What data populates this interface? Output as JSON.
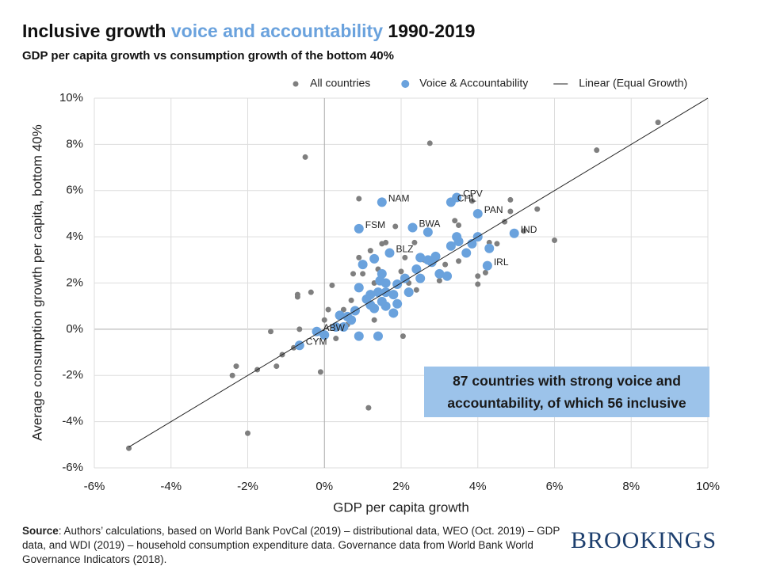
{
  "chart_data": {
    "type": "scatter",
    "title": [
      "Inclusive growth",
      "voice and accountability",
      "1990-2019"
    ],
    "subtitle": "GDP per capita growth vs consumption growth of the bottom 40%",
    "x_label": "GDP per capita growth",
    "y_label": "Average consumption growth per capita, bottom 40%",
    "xlim": [
      -6,
      10
    ],
    "ylim": [
      -6,
      10
    ],
    "xticks": [
      {
        "value": -6,
        "label": "-6%"
      },
      {
        "value": -4,
        "label": "-4%"
      },
      {
        "value": -2,
        "label": "-2%"
      },
      {
        "value": 0,
        "label": "0%"
      },
      {
        "value": 2,
        "label": "2%"
      },
      {
        "value": 4,
        "label": "4%"
      },
      {
        "value": 6,
        "label": "6%"
      },
      {
        "value": 8,
        "label": "8%"
      },
      {
        "value": 10,
        "label": "10%"
      }
    ],
    "yticks": [
      {
        "value": -6,
        "label": "-6%"
      },
      {
        "value": -4,
        "label": "-4%"
      },
      {
        "value": -2,
        "label": "-2%"
      },
      {
        "value": 0,
        "label": "0%"
      },
      {
        "value": 2,
        "label": "2%"
      },
      {
        "value": 4,
        "label": "4%"
      },
      {
        "value": 6,
        "label": "6%"
      },
      {
        "value": 8,
        "label": "8%"
      },
      {
        "value": 10,
        "label": "10%"
      }
    ],
    "grid": true,
    "series": [
      {
        "name": "All countries",
        "color": "#7f7f7f",
        "kind": "scatter",
        "x": [
          -5.1,
          -2.4,
          -2.3,
          -2.0,
          -1.75,
          -1.4,
          -1.25,
          -1.1,
          -0.8,
          -0.7,
          -0.7,
          -0.65,
          -0.5,
          -0.35,
          -0.1,
          0.0,
          0.1,
          0.2,
          0.3,
          0.5,
          0.7,
          0.75,
          0.9,
          0.9,
          1.0,
          1.15,
          1.2,
          1.3,
          1.3,
          1.5,
          1.6,
          1.85,
          2.0,
          2.05,
          2.1,
          2.2,
          2.35,
          2.75,
          2.9,
          3.0,
          3.15,
          3.4,
          3.5,
          3.5,
          3.85,
          4.0,
          4.0,
          4.2,
          4.3,
          4.5,
          4.7,
          4.85,
          4.85,
          5.2,
          5.55,
          6.0,
          7.1,
          8.7,
          1.4,
          0.6,
          2.4,
          2.6
        ],
        "values": [
          -5.15,
          -2.0,
          -1.6,
          -4.5,
          -1.75,
          -0.1,
          -1.6,
          -1.1,
          -0.8,
          1.4,
          1.5,
          0.0,
          7.45,
          1.6,
          -1.85,
          0.4,
          0.85,
          1.9,
          -0.4,
          0.85,
          1.25,
          2.4,
          5.65,
          3.1,
          2.4,
          -3.4,
          3.4,
          2.0,
          0.4,
          3.7,
          3.75,
          4.45,
          2.5,
          -0.3,
          3.1,
          2.0,
          3.75,
          8.05,
          3.0,
          2.1,
          2.8,
          4.7,
          4.5,
          2.95,
          5.55,
          2.3,
          1.95,
          2.45,
          3.75,
          3.7,
          4.65,
          5.1,
          5.6,
          4.25,
          5.2,
          3.85,
          7.75,
          8.95,
          2.6,
          0.2,
          1.7,
          3.0
        ]
      },
      {
        "name": "Voice & Accountability",
        "color": "#6aa2dd",
        "kind": "scatter",
        "x": [
          -0.65,
          -0.2,
          0.0,
          0.3,
          0.4,
          0.5,
          0.6,
          0.8,
          0.9,
          0.9,
          0.9,
          1.0,
          1.1,
          1.2,
          1.3,
          1.4,
          1.4,
          1.5,
          1.5,
          1.6,
          1.6,
          1.7,
          1.8,
          1.8,
          1.9,
          1.9,
          2.1,
          2.2,
          2.3,
          2.4,
          2.5,
          2.5,
          2.7,
          2.7,
          2.9,
          3.0,
          3.2,
          3.3,
          3.3,
          3.45,
          3.45,
          3.5,
          3.7,
          3.85,
          4.0,
          4.0,
          4.3,
          4.25,
          4.95,
          1.2,
          1.3,
          1.5,
          2.8,
          0.7,
          1.6,
          1.45
        ],
        "values": [
          -0.7,
          -0.1,
          -0.25,
          0.1,
          0.6,
          0.1,
          0.55,
          0.8,
          -0.3,
          1.8,
          4.35,
          2.8,
          1.3,
          1.05,
          3.05,
          -0.3,
          1.6,
          5.5,
          2.4,
          1.0,
          2.0,
          3.3,
          1.5,
          0.7,
          1.1,
          1.95,
          2.2,
          1.6,
          4.4,
          2.6,
          2.2,
          3.1,
          4.2,
          3.0,
          3.15,
          2.4,
          2.3,
          5.5,
          3.6,
          5.7,
          4.0,
          3.8,
          3.3,
          3.7,
          5.0,
          4.0,
          3.5,
          2.75,
          4.15,
          1.5,
          0.9,
          1.2,
          2.9,
          0.4,
          1.6,
          2.1
        ]
      },
      {
        "name": "Linear (Equal Growth)",
        "color": "#222222",
        "kind": "line",
        "x": [
          -5.1,
          10
        ],
        "values": [
          -5.1,
          10
        ]
      }
    ],
    "annotations": [
      {
        "text": "CPV",
        "x": 3.45,
        "y": 5.7
      },
      {
        "text": "CHL",
        "x": 3.3,
        "y": 5.5
      },
      {
        "text": "NAM",
        "x": 1.5,
        "y": 5.5
      },
      {
        "text": "PAN",
        "x": 4.0,
        "y": 5.0
      },
      {
        "text": "FSM",
        "x": 0.9,
        "y": 4.35
      },
      {
        "text": "BWA",
        "x": 2.3,
        "y": 4.4
      },
      {
        "text": "IND",
        "x": 4.95,
        "y": 4.15
      },
      {
        "text": "BLZ",
        "x": 1.7,
        "y": 3.3
      },
      {
        "text": "IRL",
        "x": 4.25,
        "y": 2.75
      },
      {
        "text": "ABW",
        "x": -0.2,
        "y": -0.1
      },
      {
        "text": "CYM",
        "x": -0.65,
        "y": -0.7
      }
    ],
    "callout": [
      "87 countries with strong voice and",
      "accountability, of which 56 inclusive"
    ],
    "source_label": "Source",
    "source": ": Authors’ calculations, based on World Bank PovCal (2019) – distributional data, WEO (Oct. 2019) – GDP data, and WDI (2019) – household consumption expenditure data. Governance data from World Bank World Governance Indicators (2018).",
    "logo": "BROOKINGS"
  }
}
